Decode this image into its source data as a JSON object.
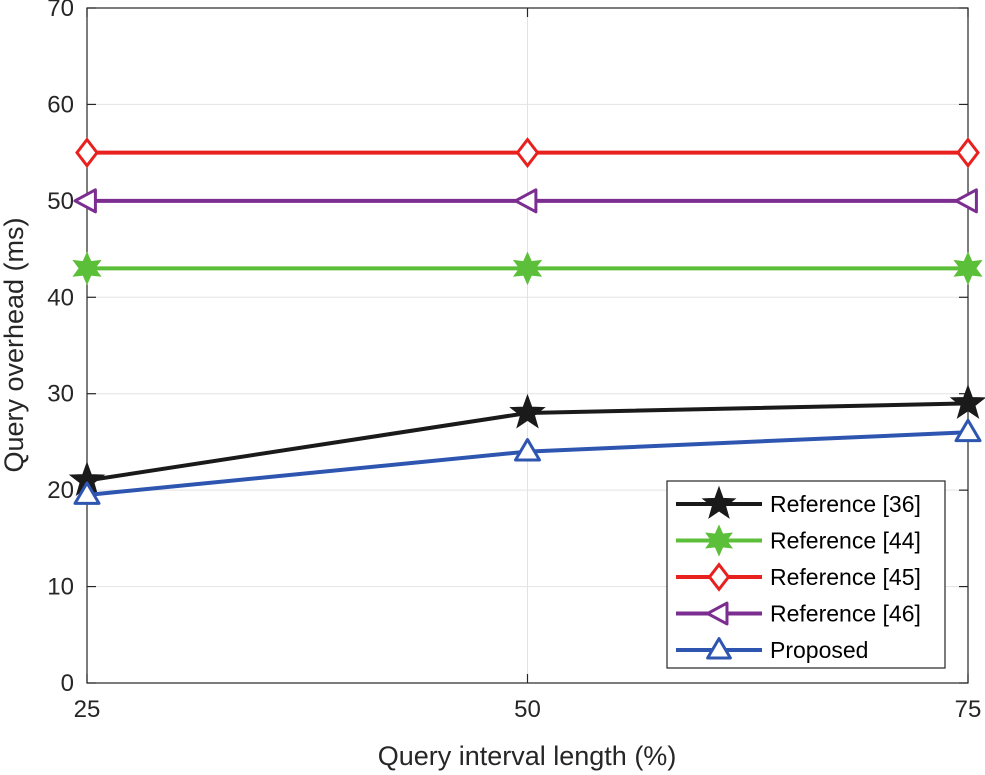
{
  "chart_data": {
    "type": "line",
    "title": "",
    "xlabel": "Query interval length (%)",
    "ylabel": "Query overhead (ms)",
    "x": [
      25,
      50,
      75
    ],
    "xlim": [
      25,
      75
    ],
    "ylim": [
      0,
      70
    ],
    "xticks": [
      "25",
      "50",
      "75"
    ],
    "yticks": [
      "0",
      "10",
      "20",
      "30",
      "40",
      "50",
      "60",
      "70"
    ],
    "grid": true,
    "legend_position": "bottom-right",
    "series": [
      {
        "name": "Reference [36]",
        "values": [
          21,
          28,
          29
        ],
        "color": "#1a1a1a",
        "marker": "star"
      },
      {
        "name": "Reference [44]",
        "values": [
          43,
          43,
          43
        ],
        "color": "#5cbf3a",
        "marker": "star"
      },
      {
        "name": "Reference [45]",
        "values": [
          55,
          55,
          55
        ],
        "color": "#e8201e",
        "marker": "diamond"
      },
      {
        "name": "Reference [46]",
        "values": [
          50,
          50,
          50
        ],
        "color": "#7b2d90",
        "marker": "triangle-left"
      },
      {
        "name": "Proposed",
        "values": [
          19.5,
          24,
          26
        ],
        "color": "#2e56b0",
        "marker": "triangle-up"
      }
    ]
  }
}
